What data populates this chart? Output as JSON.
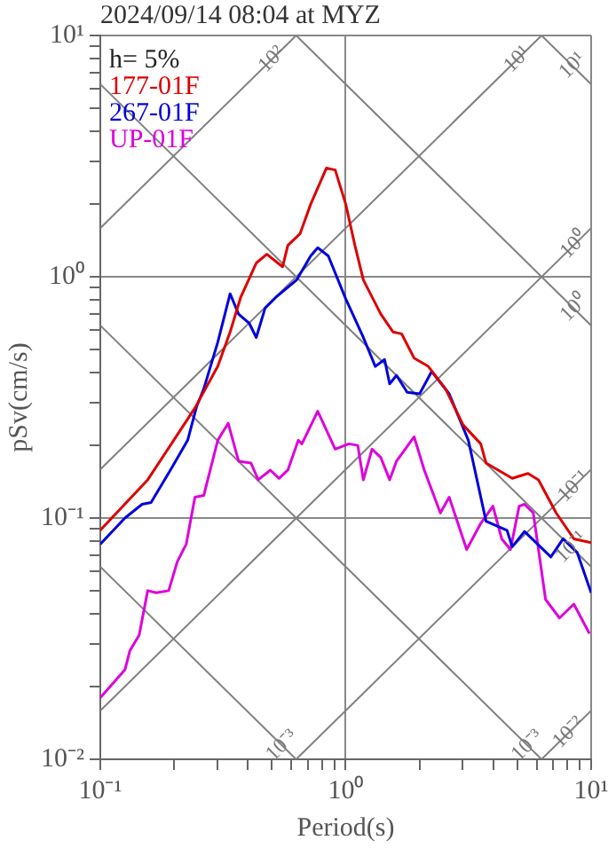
{
  "chart_data": {
    "type": "line",
    "title": "2024/09/14 08:04 at MYZ",
    "xlabel": "Period(s)",
    "ylabel": "pSv(cm/s)",
    "log": "xy",
    "grid": true,
    "legend": "top left",
    "marker": "none",
    "xlim": [
      0.1,
      10
    ],
    "ylim": [
      0.01,
      10
    ],
    "xticks": [
      {
        "value": 0.1,
        "label": "10⁻¹"
      },
      {
        "value": 0.2,
        "label": null
      },
      {
        "value": 0.3,
        "label": null
      },
      {
        "value": 0.4,
        "label": null
      },
      {
        "value": 0.5,
        "label": null
      },
      {
        "value": 0.6,
        "label": null
      },
      {
        "value": 0.7,
        "label": null
      },
      {
        "value": 0.8,
        "label": null
      },
      {
        "value": 0.9,
        "label": null
      },
      {
        "value": 1,
        "label": "10⁰"
      },
      {
        "value": 2,
        "label": null
      },
      {
        "value": 3,
        "label": null
      },
      {
        "value": 4,
        "label": null
      },
      {
        "value": 5,
        "label": null
      },
      {
        "value": 6,
        "label": null
      },
      {
        "value": 7,
        "label": null
      },
      {
        "value": 8,
        "label": null
      },
      {
        "value": 9,
        "label": null
      },
      {
        "value": 10,
        "label": "10¹"
      }
    ],
    "yticks": [
      {
        "value": 0.01,
        "label": "10⁻²"
      },
      {
        "value": 0.02,
        "label": null
      },
      {
        "value": 0.03,
        "label": null
      },
      {
        "value": 0.04,
        "label": null
      },
      {
        "value": 0.05,
        "label": null
      },
      {
        "value": 0.06,
        "label": null
      },
      {
        "value": 0.07,
        "label": null
      },
      {
        "value": 0.08,
        "label": null
      },
      {
        "value": 0.09,
        "label": null
      },
      {
        "value": 0.1,
        "label": "10⁻¹"
      },
      {
        "value": 0.2,
        "label": null
      },
      {
        "value": 0.3,
        "label": null
      },
      {
        "value": 0.4,
        "label": null
      },
      {
        "value": 0.5,
        "label": null
      },
      {
        "value": 0.6,
        "label": null
      },
      {
        "value": 0.7,
        "label": null
      },
      {
        "value": 0.8,
        "label": null
      },
      {
        "value": 0.9,
        "label": null
      },
      {
        "value": 1,
        "label": "10⁰"
      },
      {
        "value": 2,
        "label": null
      },
      {
        "value": 3,
        "label": null
      },
      {
        "value": 4,
        "label": null
      },
      {
        "value": 5,
        "label": null
      },
      {
        "value": 6,
        "label": null
      },
      {
        "value": 7,
        "label": null
      },
      {
        "value": 8,
        "label": null
      },
      {
        "value": 9,
        "label": null
      },
      {
        "value": 10,
        "label": "10¹"
      }
    ],
    "annotations": [
      "h= 5%",
      {
        "text": "10²",
        "x": 0.5,
        "y": 7.96
      },
      {
        "text": "10¹",
        "x": 5,
        "y": 7.96
      },
      {
        "text": "10¹",
        "x": 8.4,
        "y": 7.5
      },
      {
        "text": "10⁰",
        "x": 8.5,
        "y": 1.35
      },
      {
        "text": "10⁰",
        "x": 8.5,
        "y": 0.74
      },
      {
        "text": "10⁻¹",
        "x": 8.5,
        "y": 0.135
      },
      {
        "text": "10⁻¹",
        "x": 8.3,
        "y": 0.0757
      },
      {
        "text": "10⁻²",
        "x": 8.1,
        "y": 0.0129
      },
      {
        "text": "10⁻³",
        "x": 5.5,
        "y": 0.0114
      },
      {
        "text": "10⁻³",
        "x": 0.55,
        "y": 0.0114
      }
    ],
    "series": [
      {
        "name": "177-01F",
        "color": "#dd0000",
        "x": [
          0.1,
          0.156,
          0.193,
          0.243,
          0.301,
          0.338,
          0.373,
          0.432,
          0.477,
          0.553,
          0.581,
          0.652,
          0.72,
          0.834,
          0.906,
          1.0,
          1.09,
          1.18,
          1.39,
          1.56,
          1.69,
          1.9,
          2.17,
          2.55,
          3.01,
          3.55,
          3.73,
          4.18,
          4.77,
          5.53,
          6.1,
          7.2,
          8.5,
          10
        ],
        "values": [
          0.089,
          0.144,
          0.2,
          0.286,
          0.425,
          0.59,
          0.82,
          1.14,
          1.24,
          1.1,
          1.35,
          1.51,
          2.0,
          2.82,
          2.77,
          2.0,
          1.35,
          0.97,
          0.7,
          0.59,
          0.58,
          0.46,
          0.425,
          0.343,
          0.243,
          0.203,
          0.169,
          0.158,
          0.146,
          0.153,
          0.144,
          0.105,
          0.082,
          0.079
        ]
      },
      {
        "name": "267-01F",
        "color": "#0000dd",
        "x": [
          0.1,
          0.126,
          0.148,
          0.161,
          0.193,
          0.227,
          0.247,
          0.264,
          0.301,
          0.338,
          0.366,
          0.405,
          0.432,
          0.469,
          0.518,
          0.631,
          0.72,
          0.769,
          0.849,
          1.0,
          1.18,
          1.32,
          1.44,
          1.51,
          1.61,
          1.78,
          2.0,
          2.24,
          2.64,
          3.16,
          3.73,
          4.54,
          4.77,
          5.35,
          6.85,
          7.69,
          8.77,
          10
        ],
        "values": [
          0.078,
          0.1,
          0.114,
          0.116,
          0.158,
          0.21,
          0.29,
          0.343,
          0.535,
          0.85,
          0.7,
          0.64,
          0.56,
          0.74,
          0.82,
          0.97,
          1.22,
          1.32,
          1.22,
          0.81,
          0.56,
          0.425,
          0.454,
          0.36,
          0.39,
          0.332,
          0.327,
          0.405,
          0.327,
          0.21,
          0.097,
          0.089,
          0.076,
          0.088,
          0.069,
          0.082,
          0.072,
          0.049
        ]
      },
      {
        "name": "UP-01F",
        "color": "#dd00dd",
        "x": [
          0.1,
          0.126,
          0.132,
          0.144,
          0.156,
          0.169,
          0.19,
          0.206,
          0.224,
          0.243,
          0.264,
          0.301,
          0.332,
          0.366,
          0.411,
          0.44,
          0.493,
          0.535,
          0.581,
          0.641,
          0.663,
          0.769,
          0.906,
          1.03,
          1.12,
          1.18,
          1.28,
          1.39,
          1.51,
          1.61,
          1.9,
          2.09,
          2.43,
          2.64,
          3.11,
          3.55,
          3.98,
          4.32,
          4.69,
          5.09,
          5.35,
          5.81,
          6.52,
          7.43,
          8.5,
          9.84
        ],
        "values": [
          0.018,
          0.0235,
          0.0282,
          0.0327,
          0.05,
          0.049,
          0.05,
          0.066,
          0.078,
          0.122,
          0.124,
          0.21,
          0.247,
          0.172,
          0.169,
          0.144,
          0.158,
          0.146,
          0.158,
          0.21,
          0.203,
          0.277,
          0.193,
          0.203,
          0.2,
          0.144,
          0.193,
          0.178,
          0.144,
          0.172,
          0.217,
          0.158,
          0.105,
          0.122,
          0.074,
          0.095,
          0.112,
          0.082,
          0.074,
          0.112,
          0.114,
          0.105,
          0.046,
          0.0385,
          0.044,
          0.0332
        ]
      },
      {
        "type": "line",
        "color": "#808080",
        "x": [
          0.1,
          0.628
        ],
        "values": [
          1.59,
          10
        ]
      },
      {
        "type": "line",
        "color": "#808080",
        "x": [
          0.1,
          6.28
        ],
        "values": [
          0.159,
          10
        ]
      },
      {
        "type": "line",
        "color": "#808080",
        "x": [
          0.1,
          10
        ],
        "values": [
          0.0159,
          1.59
        ]
      },
      {
        "type": "line",
        "color": "#808080",
        "x": [
          0.628,
          10
        ],
        "values": [
          0.01,
          0.159
        ]
      },
      {
        "type": "line",
        "color": "#808080",
        "x": [
          6.28,
          10
        ],
        "values": [
          0.01,
          0.0159
        ]
      },
      {
        "type": "line",
        "color": "#808080",
        "x": [
          6.28,
          10
        ],
        "values": [
          10,
          6.28
        ]
      },
      {
        "type": "line",
        "color": "#808080",
        "x": [
          0.628,
          10
        ],
        "values": [
          10,
          0.628
        ]
      },
      {
        "type": "line",
        "color": "#808080",
        "x": [
          0.1,
          10
        ],
        "values": [
          6.28,
          0.0628
        ]
      },
      {
        "type": "line",
        "color": "#808080",
        "x": [
          0.1,
          6.28
        ],
        "values": [
          0.628,
          0.01
        ]
      },
      {
        "type": "line",
        "color": "#808080",
        "x": [
          0.1,
          0.628
        ],
        "values": [
          0.0628,
          0.01
        ]
      }
    ]
  }
}
